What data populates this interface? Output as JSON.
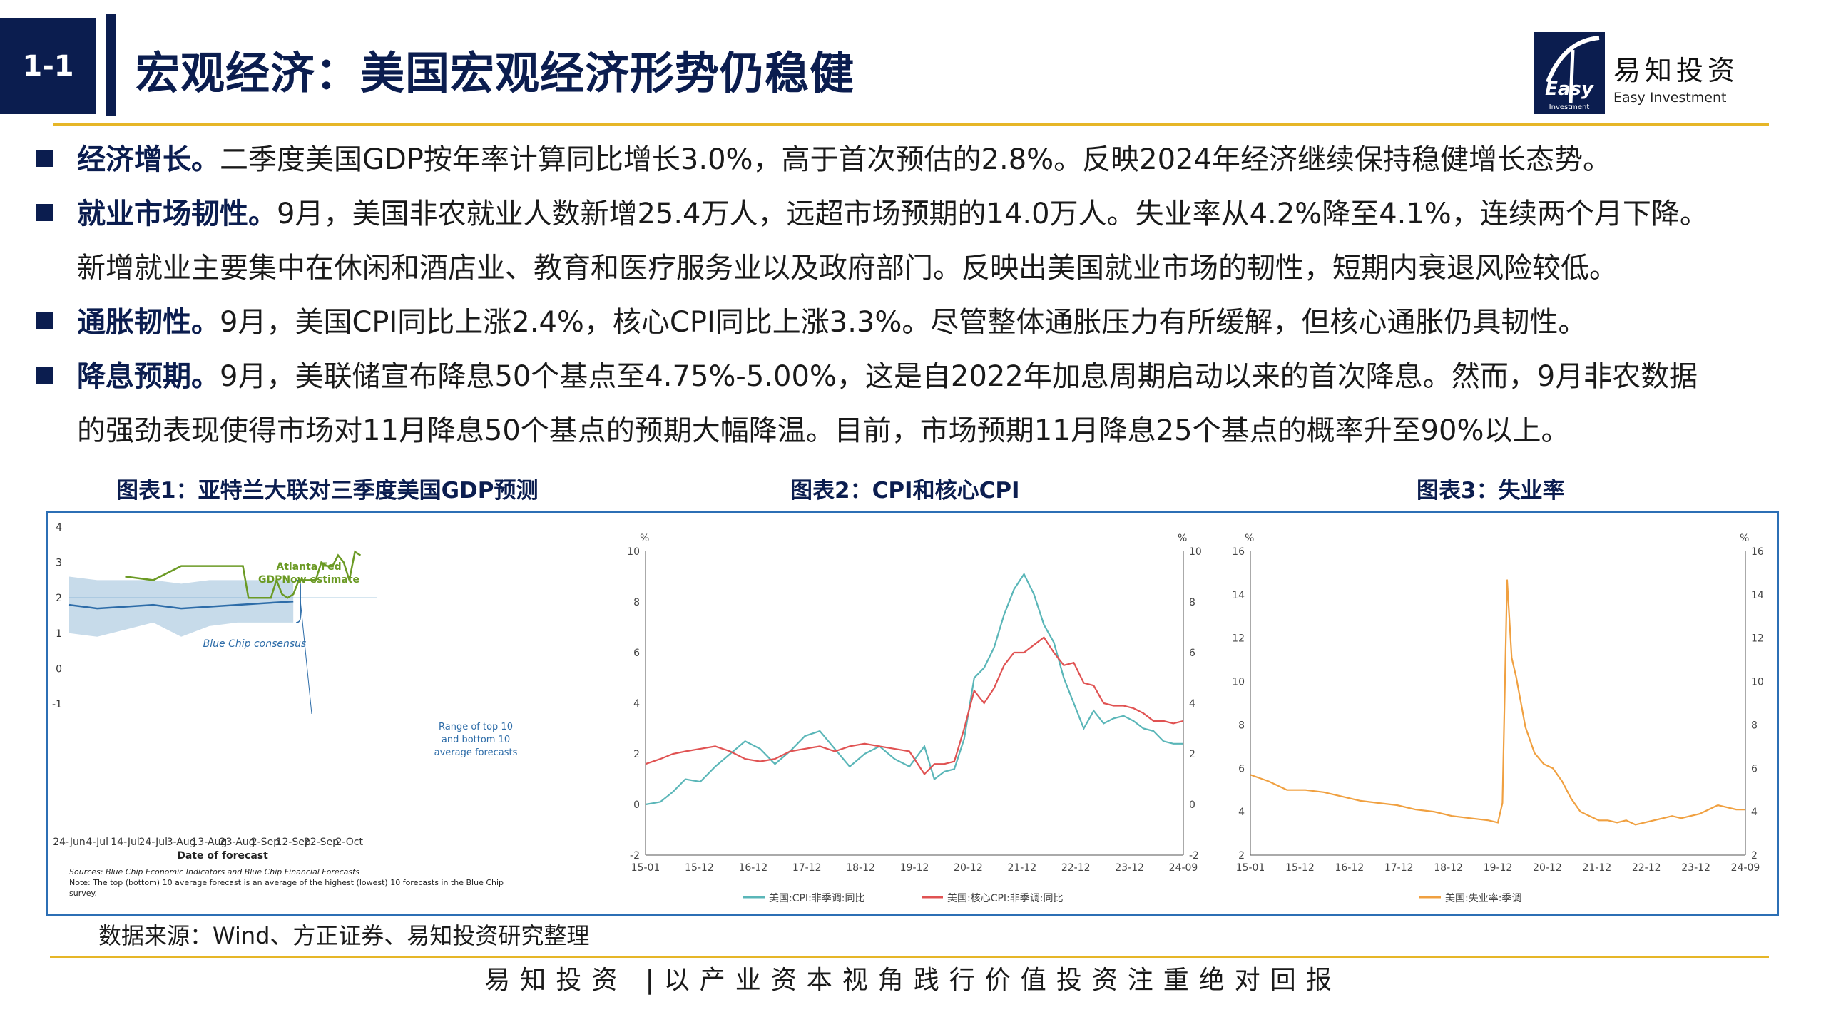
{
  "header": {
    "badge": "1-1",
    "title": "宏观经济：美国宏观经济形势仍稳健",
    "logo_cn": "易知投资",
    "logo_en": "Easy Investment",
    "logo_mark": "Easy Investment"
  },
  "bullets": [
    {
      "head": "经济增长。",
      "text": "二季度美国GDP按年率计算同比增长3.0%，高于首次预估的2.8%。反映2024年经济继续保持稳健增长态势。",
      "cont": ""
    },
    {
      "head": "就业市场韧性。",
      "text": "9月，美国非农就业人数新增25.4万人，远超市场预期的14.0万人。失业率从4.2%降至4.1%，连续两个月下降。",
      "cont": "新增就业主要集中在休闲和酒店业、教育和医疗服务业以及政府部门。反映出美国就业市场的韧性，短期内衰退风险较低。"
    },
    {
      "head": "通胀韧性。",
      "text": "9月，美国CPI同比上涨2.4%，核心CPI同比上涨3.3%。尽管整体通胀压力有所缓解，但核心通胀仍具韧性。",
      "cont": ""
    },
    {
      "head": "降息预期。",
      "text": "9月，美联储宣布降息50个基点至4.75%-5.00%，这是自2022年加息周期启动以来的首次降息。然而，9月非农数据",
      "cont": "的强劲表现使得市场对11月降息50个基点的预期大幅降温。目前，市场预期11月降息25个基点的概率升至90%以上。"
    }
  ],
  "chart_titles": [
    "图表1：亚特兰大联对三季度美国GDP预测",
    "图表2：CPI和核心CPI",
    "图表3：失业率"
  ],
  "source": "数据来源：Wind、方正证券、易知投资研究整理",
  "slogan": "易知投资 |以产业资本视角践行价值投资注重绝对回报",
  "colors": {
    "navy": "#0b1d4f",
    "gold": "#e6b628",
    "green": "#6b9a24",
    "blue": "#2d6ca8",
    "teal": "#5ab6b8",
    "red": "#e05252",
    "orange": "#f0a040"
  },
  "chart_data": [
    {
      "type": "line",
      "title": "图表1：亚特兰大联对三季度美国GDP预测",
      "xlabel": "Date of forecast",
      "ylabel": "",
      "ylim": [
        -1,
        4
      ],
      "yticks": [
        "4",
        "3",
        "2",
        "1",
        "0",
        "-1"
      ],
      "xticks": [
        "24-Jun",
        "4-Jul",
        "14-Jul",
        "24-Jul",
        "3-Aug",
        "13-Aug",
        "23-Aug",
        "2-Sep",
        "12-Sep",
        "22-Sep",
        "2-Oct"
      ],
      "annotations": [
        "Atlanta Fed",
        "GDPNow estimate",
        "Blue Chip consensus",
        "Range of top 10",
        "and bottom 10",
        "average forecasts"
      ],
      "notes": [
        "Sources: Blue Chip Economic Indicators and Blue Chip Financial Forecasts",
        "Note: The top (bottom) 10 average forecast is an average of the highest (lowest) 10 forecasts in the Blue Chip",
        "survey."
      ],
      "series": [
        {
          "key": "gdpnow",
          "x": [
            0,
            10,
            20,
            30,
            40,
            50,
            60,
            62,
            64,
            66,
            68,
            70,
            72,
            74,
            76,
            78,
            80,
            82,
            84,
            86,
            88,
            90,
            92,
            94,
            96,
            98,
            100,
            102,
            104
          ],
          "values": [
            2.8,
            2.8,
            2.6,
            2.5,
            2.9,
            2.9,
            2.9,
            2.9,
            2.0,
            2.0,
            2.0,
            2.0,
            2.0,
            2.5,
            2.1,
            2.0,
            2.1,
            2.5,
            2.5,
            2.5,
            2.5,
            3.0,
            2.9,
            2.9,
            3.2,
            3.0,
            2.5,
            3.3,
            3.2
          ]
        },
        {
          "key": "bluechip",
          "x": [
            0,
            10,
            20,
            30,
            40,
            50,
            60,
            70,
            80
          ],
          "values": [
            1.8,
            1.7,
            1.75,
            1.8,
            1.7,
            1.75,
            1.8,
            1.85,
            1.9
          ]
        },
        {
          "key": "bluechip_high",
          "x": [
            0,
            10,
            20,
            30,
            40,
            50,
            60,
            70,
            80
          ],
          "values": [
            2.6,
            2.5,
            2.5,
            2.5,
            2.4,
            2.5,
            2.5,
            2.5,
            2.5
          ]
        },
        {
          "key": "bluechip_low",
          "x": [
            0,
            10,
            20,
            30,
            40,
            50,
            60,
            70,
            80
          ],
          "values": [
            1.0,
            0.9,
            1.1,
            1.3,
            0.9,
            1.2,
            1.3,
            1.3,
            1.3
          ]
        }
      ]
    },
    {
      "type": "line",
      "title": "图表2：CPI和核心CPI",
      "ylabel": "%",
      "ylim": [
        -2,
        10
      ],
      "yticks": [
        "10",
        "8",
        "6",
        "4",
        "2",
        "0",
        "-2"
      ],
      "xticks": [
        "15-01",
        "15-12",
        "16-12",
        "17-12",
        "18-12",
        "19-12",
        "20-12",
        "21-12",
        "22-12",
        "23-12",
        "24-09"
      ],
      "series": [
        {
          "name": "美国:CPI:非季调:同比",
          "x": [
            0,
            6,
            11,
            16,
            22,
            28,
            34,
            40,
            46,
            52,
            58,
            64,
            70,
            76,
            82,
            88,
            94,
            100,
            106,
            112,
            116,
            120,
            124,
            128,
            132,
            136,
            140,
            144,
            148,
            152,
            156,
            160,
            164,
            168,
            172,
            176,
            180,
            184,
            188,
            192,
            196,
            200,
            204,
            208,
            212,
            216
          ],
          "values": [
            0.0,
            0.1,
            0.5,
            1.0,
            0.9,
            1.5,
            2.0,
            2.5,
            2.2,
            1.6,
            2.1,
            2.7,
            2.9,
            2.2,
            1.5,
            2.0,
            2.3,
            1.8,
            1.5,
            2.3,
            1.0,
            1.3,
            1.4,
            2.6,
            5.0,
            5.4,
            6.2,
            7.5,
            8.5,
            9.1,
            8.3,
            7.1,
            6.4,
            5.0,
            4.0,
            3.0,
            3.7,
            3.2,
            3.4,
            3.5,
            3.3,
            3.0,
            2.9,
            2.5,
            2.4,
            2.4
          ]
        },
        {
          "name": "美国:核心CPI:非季调:同比",
          "x": [
            0,
            6,
            11,
            16,
            22,
            28,
            34,
            40,
            46,
            52,
            58,
            64,
            70,
            76,
            82,
            88,
            94,
            100,
            106,
            112,
            116,
            120,
            124,
            128,
            132,
            136,
            140,
            144,
            148,
            152,
            156,
            160,
            164,
            168,
            172,
            176,
            180,
            184,
            188,
            192,
            196,
            200,
            204,
            208,
            212,
            216
          ],
          "values": [
            1.6,
            1.8,
            2.0,
            2.1,
            2.2,
            2.3,
            2.1,
            1.8,
            1.7,
            1.8,
            2.1,
            2.2,
            2.3,
            2.1,
            2.3,
            2.4,
            2.3,
            2.2,
            2.1,
            1.2,
            1.6,
            1.6,
            1.7,
            3.0,
            4.5,
            4.0,
            4.6,
            5.5,
            6.0,
            6.0,
            6.3,
            6.6,
            6.0,
            5.5,
            5.6,
            4.8,
            4.7,
            4.0,
            3.9,
            3.9,
            3.8,
            3.6,
            3.3,
            3.3,
            3.2,
            3.3
          ]
        }
      ]
    },
    {
      "type": "line",
      "title": "图表3：失业率",
      "ylabel": "%",
      "ylim": [
        2,
        16
      ],
      "yticks": [
        "16",
        "14",
        "12",
        "10",
        "8",
        "6",
        "4",
        "2"
      ],
      "xticks": [
        "15-01",
        "15-12",
        "16-12",
        "17-12",
        "18-12",
        "19-12",
        "20-12",
        "21-12",
        "22-12",
        "23-12",
        "24-09"
      ],
      "series": [
        {
          "name": "美国:失业率:季调",
          "x": [
            0,
            8,
            16,
            24,
            32,
            40,
            48,
            56,
            64,
            72,
            80,
            88,
            96,
            104,
            108,
            110,
            112,
            114,
            116,
            120,
            124,
            128,
            132,
            136,
            140,
            144,
            148,
            152,
            156,
            160,
            164,
            168,
            172,
            176,
            180,
            184,
            188,
            192,
            196,
            200,
            204,
            208,
            212,
            216
          ],
          "values": [
            5.7,
            5.4,
            5.0,
            5.0,
            4.9,
            4.7,
            4.5,
            4.4,
            4.3,
            4.1,
            4.0,
            3.8,
            3.7,
            3.6,
            3.5,
            4.4,
            14.7,
            11.1,
            10.2,
            7.9,
            6.7,
            6.2,
            6.0,
            5.4,
            4.6,
            4.0,
            3.8,
            3.6,
            3.6,
            3.5,
            3.6,
            3.4,
            3.5,
            3.6,
            3.7,
            3.8,
            3.7,
            3.8,
            3.9,
            4.1,
            4.3,
            4.2,
            4.1,
            4.1
          ]
        }
      ]
    }
  ]
}
